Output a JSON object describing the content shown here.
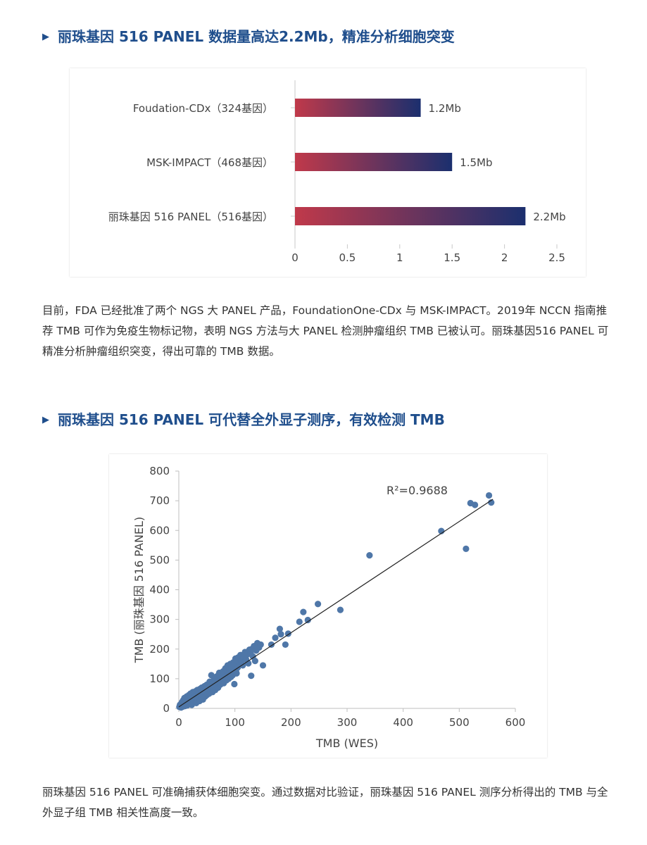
{
  "section1": {
    "heading": "丽珠基因 516 PANEL 数据量高达2.2Mb，精准分析细胞突变",
    "paragraph": "目前，FDA 已经批准了两个 NGS 大 PANEL 产品，FoundationOne-CDx 与 MSK-IMPACT。2019年 NCCN 指南推荐 TMB 可作为免疫生物标记物，表明 NGS 方法与大 PANEL 检测肿瘤组织 TMB 已被认可。丽珠基因516 PANEL 可精准分析肿瘤组织突变，得出可靠的 TMB 数据。"
  },
  "section2": {
    "heading": "丽珠基因 516 PANEL 可代替全外显子测序，有效检测 TMB",
    "paragraph": "丽珠基因 516 PANEL 可准确捕获体细胞突变。通过数据对比验证，丽珠基因 516 PANEL 测序分析得出的 TMB 与全外显子组 TMB 相关性高度一致。"
  },
  "colors": {
    "heading": "#1f4e8c",
    "bar_gradient_start": "#c0394a",
    "bar_gradient_end": "#1b2f6e",
    "scatter_point": "#4f77a8",
    "regression_line": "#222222"
  },
  "chart_data": [
    {
      "type": "bar",
      "orientation": "horizontal",
      "categories": [
        "Foudation-CDx（324基因）",
        "MSK-IMPACT（468基因）",
        "丽珠基因 516 PANEL（516基因）"
      ],
      "values": [
        1.2,
        1.5,
        2.2
      ],
      "data_labels": [
        "1.2Mb",
        "1.5Mb",
        "2.2Mb"
      ],
      "xlim": [
        0,
        2.5
      ],
      "xticks": [
        "0",
        "0.5",
        "1",
        "1.5",
        "2",
        "2.5"
      ],
      "grid": false,
      "legend": "none"
    },
    {
      "type": "scatter",
      "xlabel": "TMB (WES)",
      "ylabel": "TMB (丽珠基因 516 PANEL)",
      "xlim": [
        0,
        600
      ],
      "ylim": [
        0,
        800
      ],
      "xticks": [
        "0",
        "100",
        "200",
        "300",
        "400",
        "500",
        "600"
      ],
      "yticks": [
        "0",
        "100",
        "200",
        "300",
        "400",
        "500",
        "600",
        "700",
        "800"
      ],
      "annotation": "R²=0.9688",
      "grid": false,
      "legend": "none",
      "trendline": {
        "x": [
          0,
          560
        ],
        "y": [
          5,
          705
        ]
      },
      "points": [
        [
          1,
          5
        ],
        [
          2,
          12
        ],
        [
          3,
          8
        ],
        [
          4,
          3
        ],
        [
          5,
          18
        ],
        [
          5,
          10
        ],
        [
          6,
          22
        ],
        [
          7,
          6
        ],
        [
          8,
          15
        ],
        [
          8,
          28
        ],
        [
          9,
          12
        ],
        [
          10,
          20
        ],
        [
          10,
          35
        ],
        [
          11,
          8
        ],
        [
          12,
          26
        ],
        [
          13,
          16
        ],
        [
          14,
          40
        ],
        [
          15,
          22
        ],
        [
          15,
          10
        ],
        [
          16,
          32
        ],
        [
          17,
          18
        ],
        [
          18,
          45
        ],
        [
          19,
          28
        ],
        [
          20,
          15
        ],
        [
          20,
          36
        ],
        [
          21,
          50
        ],
        [
          22,
          24
        ],
        [
          23,
          12
        ],
        [
          24,
          42
        ],
        [
          25,
          30
        ],
        [
          25,
          55
        ],
        [
          26,
          20
        ],
        [
          27,
          38
        ],
        [
          28,
          48
        ],
        [
          29,
          26
        ],
        [
          30,
          58
        ],
        [
          30,
          35
        ],
        [
          31,
          18
        ],
        [
          32,
          44
        ],
        [
          33,
          62
        ],
        [
          34,
          30
        ],
        [
          35,
          52
        ],
        [
          36,
          40
        ],
        [
          37,
          25
        ],
        [
          38,
          66
        ],
        [
          39,
          48
        ],
        [
          40,
          35
        ],
        [
          40,
          58
        ],
        [
          41,
          70
        ],
        [
          42,
          44
        ],
        [
          43,
          30
        ],
        [
          44,
          62
        ],
        [
          45,
          52
        ],
        [
          46,
          75
        ],
        [
          47,
          40
        ],
        [
          48,
          66
        ],
        [
          49,
          55
        ],
        [
          50,
          45
        ],
        [
          50,
          80
        ],
        [
          52,
          62
        ],
        [
          53,
          70
        ],
        [
          54,
          50
        ],
        [
          55,
          90
        ],
        [
          56,
          60
        ],
        [
          57,
          75
        ],
        [
          58,
          112
        ],
        [
          59,
          68
        ],
        [
          60,
          82
        ],
        [
          60,
          55
        ],
        [
          62,
          95
        ],
        [
          63,
          72
        ],
        [
          64,
          100
        ],
        [
          65,
          62
        ],
        [
          66,
          88
        ],
        [
          67,
          78
        ],
        [
          68,
          108
        ],
        [
          69,
          92
        ],
        [
          70,
          70
        ],
        [
          71,
          85
        ],
        [
          72,
          120
        ],
        [
          73,
          95
        ],
        [
          74,
          80
        ],
        [
          75,
          105
        ],
        [
          76,
          88
        ],
        [
          77,
          112
        ],
        [
          78,
          98
        ],
        [
          79,
          125
        ],
        [
          80,
          102
        ],
        [
          80,
          85
        ],
        [
          82,
          118
        ],
        [
          83,
          135
        ],
        [
          84,
          108
        ],
        [
          85,
          95
        ],
        [
          86,
          128
        ],
        [
          87,
          145
        ],
        [
          88,
          112
        ],
        [
          89,
          100
        ],
        [
          90,
          132
        ],
        [
          91,
          118
        ],
        [
          92,
          150
        ],
        [
          93,
          106
        ],
        [
          94,
          140
        ],
        [
          95,
          122
        ],
        [
          96,
          112
        ],
        [
          97,
          155
        ],
        [
          98,
          130
        ],
        [
          99,
          82
        ],
        [
          100,
          145
        ],
        [
          101,
          168
        ],
        [
          102,
          125
        ],
        [
          103,
          118
        ],
        [
          104,
          160
        ],
        [
          105,
          138
        ],
        [
          106,
          172
        ],
        [
          108,
          148
        ],
        [
          110,
          180
        ],
        [
          112,
          158
        ],
        [
          114,
          145
        ],
        [
          116,
          175
        ],
        [
          118,
          190
        ],
        [
          120,
          165
        ],
        [
          122,
          182
        ],
        [
          124,
          152
        ],
        [
          126,
          198
        ],
        [
          128,
          185
        ],
        [
          129,
          110
        ],
        [
          130,
          200
        ],
        [
          132,
          175
        ],
        [
          134,
          210
        ],
        [
          136,
          160
        ],
        [
          138,
          195
        ],
        [
          140,
          220
        ],
        [
          143,
          205
        ],
        [
          146,
          215
        ],
        [
          150,
          145
        ],
        [
          165,
          215
        ],
        [
          172,
          238
        ],
        [
          180,
          268
        ],
        [
          182,
          250
        ],
        [
          190,
          215
        ],
        [
          195,
          252
        ],
        [
          215,
          292
        ],
        [
          222,
          325
        ],
        [
          230,
          298
        ],
        [
          248,
          352
        ],
        [
          288,
          332
        ],
        [
          340,
          516
        ],
        [
          468,
          598
        ],
        [
          512,
          538
        ],
        [
          520,
          692
        ],
        [
          528,
          686
        ],
        [
          553,
          718
        ],
        [
          557,
          694
        ]
      ]
    }
  ]
}
